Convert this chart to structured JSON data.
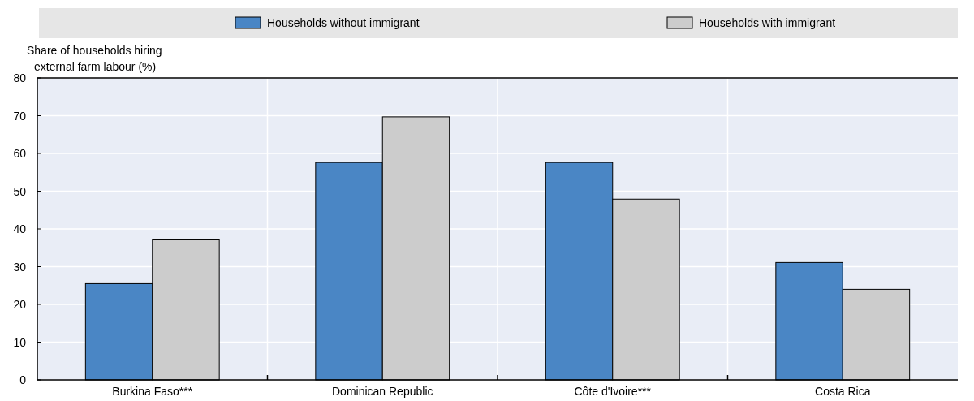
{
  "chart_data": {
    "type": "bar",
    "ylabel": "Share of households hiring\nexternal farm labour (%)",
    "categories": [
      "Burkina Faso***",
      "Dominican Republic",
      "Côte d'Ivoire***",
      "Costa Rica"
    ],
    "series": [
      {
        "name": "Households without immigrant",
        "color": "#4a86c5",
        "values": [
          25.5,
          57.6,
          57.6,
          31.1
        ]
      },
      {
        "name": "Households with immigrant",
        "color": "#cccccc",
        "values": [
          37.1,
          69.7,
          47.9,
          24.0
        ]
      }
    ],
    "ylim": [
      0,
      80
    ],
    "yticks": [
      0,
      10,
      20,
      30,
      40,
      50,
      60,
      70,
      80
    ],
    "grid": true,
    "legend": "top"
  }
}
